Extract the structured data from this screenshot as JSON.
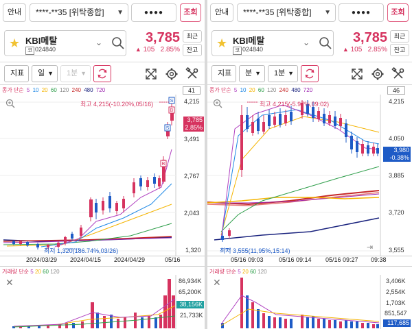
{
  "panels": [
    {
      "topbar": {
        "info_label": "안내",
        "account": "****-**35 [위탁종합]",
        "password_mask": "●●●●",
        "query_label": "조회"
      },
      "stock": {
        "name": "KBI메탈",
        "code_tag": "코",
        "code": "024840",
        "price": "3,785",
        "change_arrow": "▲",
        "change": "105",
        "change_pct": "2.85%",
        "recent_label": "최근",
        "balance_label": "잔고"
      },
      "toolbar": {
        "indicator_label": "지표",
        "period_label": "일",
        "interval_label": "1분"
      },
      "legend": {
        "prefix": "종가 단순",
        "periods": [
          "5",
          "10",
          "20",
          "60",
          "120",
          "240",
          "480",
          "720"
        ],
        "count": "41"
      },
      "y_labels": [
        "4,215",
        "3,491",
        "2,767",
        "2,043",
        "1,320"
      ],
      "price_tag": {
        "value": "3,785",
        "pct": "2.85%"
      },
      "high_label": "최고 4,215(-10.20%,05/16)",
      "low_label": "최저 1,320(186.74%,03/26)",
      "x_labels": [
        "2024/03/29",
        "2024/04/15",
        "2024/04/29",
        "05/16"
      ],
      "vol_legend": {
        "prefix": "거래량 단순",
        "periods": [
          "5",
          "20",
          "60",
          "120"
        ]
      },
      "vol_labels": [
        "86,934K",
        "65,200K",
        "21,733K"
      ],
      "vol_tag": "38,156K"
    },
    {
      "topbar": {
        "info_label": "안내",
        "account": "****-**35 [위탁종합]",
        "password_mask": "●●●●",
        "query_label": "조회"
      },
      "stock": {
        "name": "KBI메탈",
        "code_tag": "코",
        "code": "024840",
        "price": "3,785",
        "change_arrow": "▲",
        "change": "105",
        "change_pct": "2.85%",
        "recent_label": "최근",
        "balance_label": "잔고"
      },
      "toolbar": {
        "indicator_label": "지표",
        "period_label": "분",
        "interval_label": "1분"
      },
      "legend": {
        "prefix": "종가 단순",
        "periods": [
          "5",
          "10",
          "20",
          "60",
          "120",
          "240",
          "480",
          "720"
        ],
        "count": "46"
      },
      "y_labels": [
        "4,215",
        "4,050",
        "3,885",
        "3,720",
        "3,555"
      ],
      "price_tag": {
        "value": "3,980",
        "pct": "-0.38%"
      },
      "high_label": "최고 4,215(-5.97%,09:02)",
      "low_label": "최저 3,555(11,95%,15:14)",
      "x_labels": [
        "05/16 09:03",
        "05/16 09:14",
        "05/16 09:27",
        "09:38"
      ],
      "vol_legend": {
        "prefix": "거래량 단순",
        "periods": [
          "5",
          "20",
          "60",
          "120"
        ]
      },
      "vol_labels": [
        "3,406K",
        "2,554K",
        "1,703K",
        "851,547"
      ],
      "vol_tag": "117,685"
    }
  ],
  "colors": {
    "up": "#d6335f",
    "down": "#1e5bc6",
    "accent": "#d6335f"
  },
  "icons": [
    "star-icon",
    "search-icon",
    "refresh-icon",
    "expand-icon",
    "gear-icon",
    "tools-icon",
    "zoom-icon",
    "close-icon"
  ]
}
